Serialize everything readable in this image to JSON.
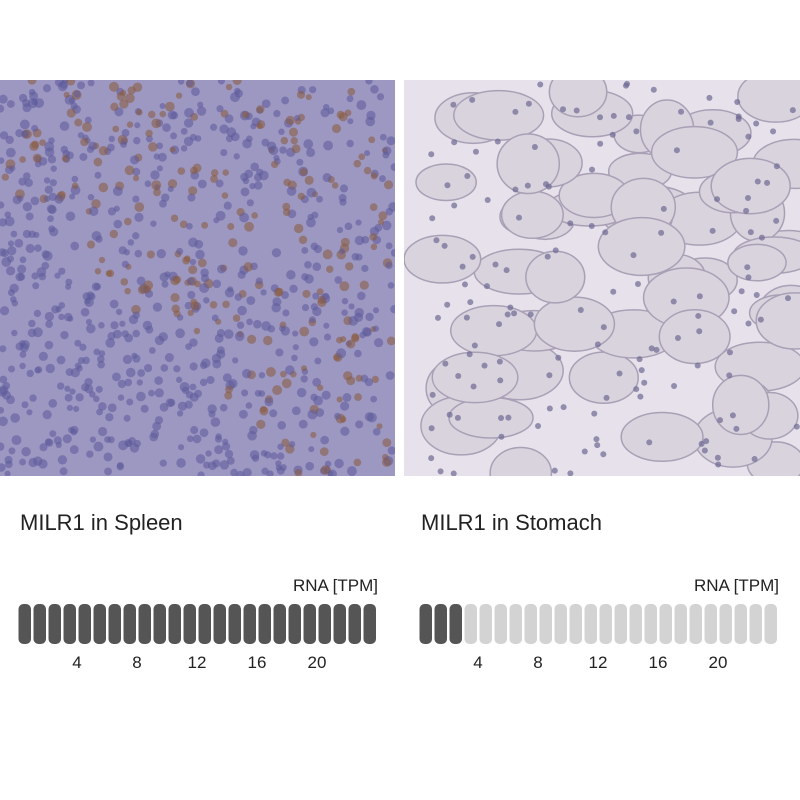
{
  "panels": [
    {
      "title": "MILR1 in Spleen",
      "rna_label": "RNA [TPM]",
      "value": 24,
      "scale_max": 24,
      "ticks": [
        4,
        8,
        12,
        16,
        20
      ]
    },
    {
      "title": "MILR1 in Stomach",
      "rna_label": "RNA [TPM]",
      "value": 3,
      "scale_max": 24,
      "ticks": [
        4,
        8,
        12,
        16,
        20
      ]
    }
  ]
}
